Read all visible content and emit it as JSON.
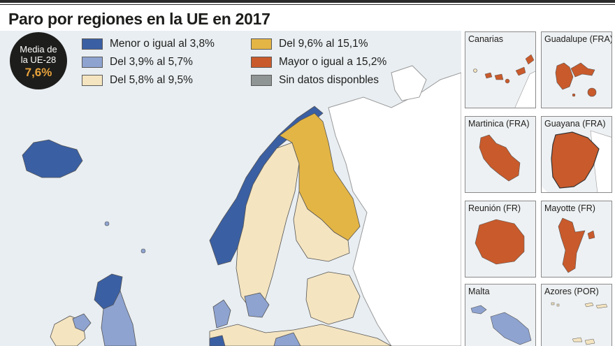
{
  "title": "Paro por regiones en la UE en 2017",
  "average": {
    "line1": "Media de",
    "line2": "la UE-28",
    "value": "7,6%"
  },
  "legend": [
    {
      "label": "Menor o igual al 3,8%",
      "color": "#3a5fa3"
    },
    {
      "label": "Del 3,9% al 5,7%",
      "color": "#8ea3d0"
    },
    {
      "label": "Del 5,8% al 9,5%",
      "color": "#f4e4c0"
    },
    {
      "label": "Del 9,6% al 15,1%",
      "color": "#e3b545"
    },
    {
      "label": "Mayor o igual a 15,2%",
      "color": "#c95a2b"
    },
    {
      "label": "Sin datos disponbles",
      "color": "#8f9494"
    }
  ],
  "insets": [
    {
      "label": "Canarias"
    },
    {
      "label": "Guadalupe (FRA)"
    },
    {
      "label": "Martinica (FRA)"
    },
    {
      "label": "Guayana (FRA)"
    },
    {
      "label": "Reunión (FR)"
    },
    {
      "label": "Mayotte (FR)"
    },
    {
      "label": "Malta"
    },
    {
      "label": "Azores (POR)"
    }
  ],
  "colors": {
    "sea": "#e9eef2",
    "land_outside": "#d8dadb",
    "border": "#555555"
  }
}
